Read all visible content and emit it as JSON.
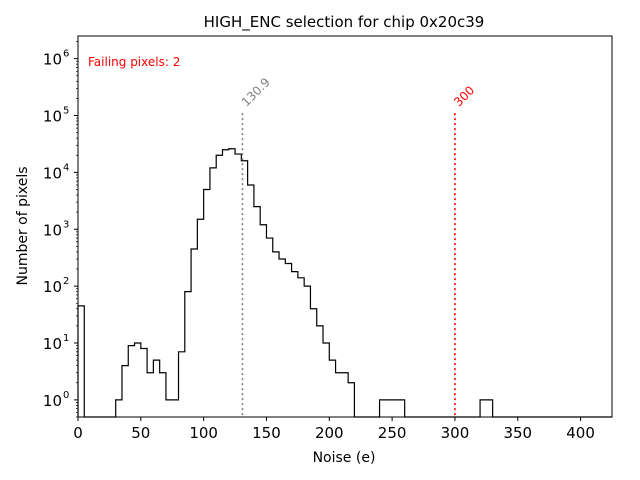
{
  "chart_data": {
    "type": "histogram",
    "title": "HIGH_ENC selection for chip 0x20c39",
    "xlabel": "Noise (e)",
    "ylabel": "Number of pixels",
    "xlim": [
      0,
      425
    ],
    "ylim": [
      0.5,
      2500000
    ],
    "yscale": "log",
    "xticks": [
      0,
      50,
      100,
      150,
      200,
      250,
      300,
      350,
      400
    ],
    "yticks": [
      {
        "base": "10",
        "exp": "0",
        "value": 1
      },
      {
        "base": "10",
        "exp": "1",
        "value": 10
      },
      {
        "base": "10",
        "exp": "2",
        "value": 100
      },
      {
        "base": "10",
        "exp": "3",
        "value": 1000
      },
      {
        "base": "10",
        "exp": "4",
        "value": 10000
      },
      {
        "base": "10",
        "exp": "5",
        "value": 100000
      },
      {
        "base": "10",
        "exp": "6",
        "value": 1000000
      }
    ],
    "bin_width": 5,
    "bin_edges_start": 0,
    "counts": [
      45,
      0,
      0,
      0,
      0,
      0,
      1,
      4,
      9,
      10,
      8,
      3,
      5,
      3,
      1,
      1,
      7,
      80,
      450,
      1500,
      5000,
      12000,
      20000,
      25000,
      26000,
      21000,
      16000,
      6000,
      2500,
      1200,
      700,
      400,
      300,
      250,
      180,
      140,
      100,
      40,
      20,
      10,
      5,
      3,
      3,
      2,
      0,
      0,
      0,
      0,
      1,
      1,
      1,
      1,
      0,
      0,
      0,
      0,
      0,
      0,
      0,
      0,
      0,
      0,
      0,
      0,
      1,
      1,
      0,
      0,
      0,
      0,
      0,
      0,
      0,
      0,
      0,
      0,
      0,
      0,
      0,
      0,
      0,
      0,
      0,
      0,
      0
    ],
    "vlines": [
      {
        "x": 130.9,
        "label": "130.9",
        "color": "#808080",
        "style": "dotted"
      },
      {
        "x": 300,
        "label": "300",
        "color": "#ff0000",
        "style": "dotted"
      }
    ],
    "annotation": {
      "text": "Failing pixels: 2",
      "color": "#ff0000",
      "position": "top-left"
    },
    "grid": false,
    "line_color": "#000000"
  }
}
